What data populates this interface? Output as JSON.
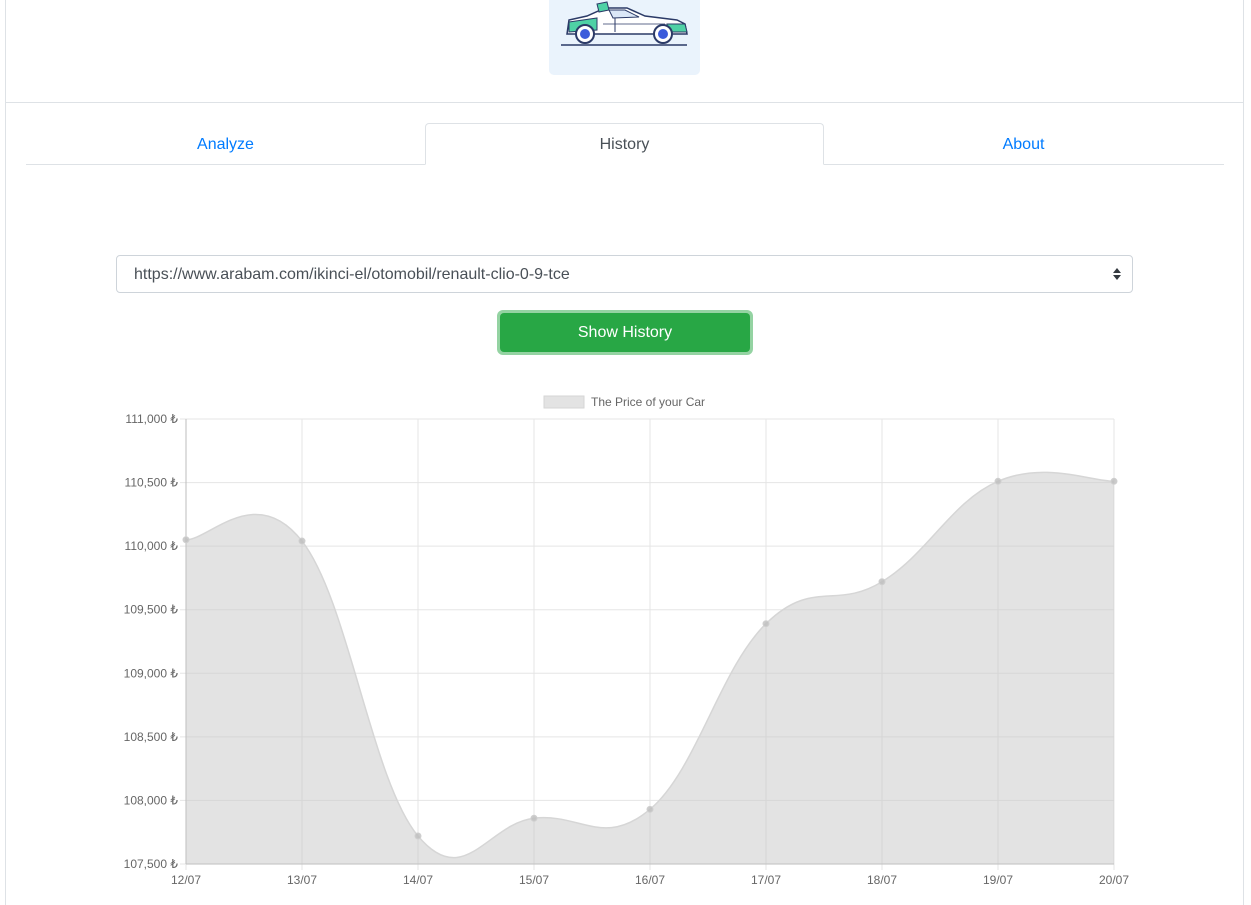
{
  "tabs": [
    {
      "label": "Analyze",
      "active": false
    },
    {
      "label": "History",
      "active": true
    },
    {
      "label": "About",
      "active": false
    }
  ],
  "url_select": {
    "selected": "https://www.arabam.com/ikinci-el/otomobil/renault-clio-0-9-tce"
  },
  "show_history_button": {
    "label": "Show History"
  },
  "colors": {
    "link": "#007bff",
    "button_green": "#28a745",
    "chart_fill": "#e3e3e3",
    "chart_line": "#d6d6d6",
    "logo_bg": "#eaf3fc"
  },
  "chart_data": {
    "type": "area",
    "legend": "The Price of your Car",
    "legend_position": "top",
    "grid": true,
    "x": [
      "12/07",
      "13/07",
      "14/07",
      "15/07",
      "16/07",
      "17/07",
      "18/07",
      "19/07",
      "20/07"
    ],
    "series": [
      {
        "name": "The Price of your Car",
        "values": [
          110050,
          110040,
          107720,
          107860,
          107930,
          109390,
          109720,
          110510,
          110510
        ]
      }
    ],
    "ylim": [
      107500,
      111000
    ],
    "yticks": [
      "111,000 ₺",
      "110,500 ₺",
      "110,000 ₺",
      "109,500 ₺",
      "109,000 ₺",
      "108,500 ₺",
      "108,000 ₺",
      "107,500 ₺"
    ],
    "ytick_values": [
      111000,
      110500,
      110000,
      109500,
      109000,
      108500,
      108000,
      107500
    ]
  }
}
